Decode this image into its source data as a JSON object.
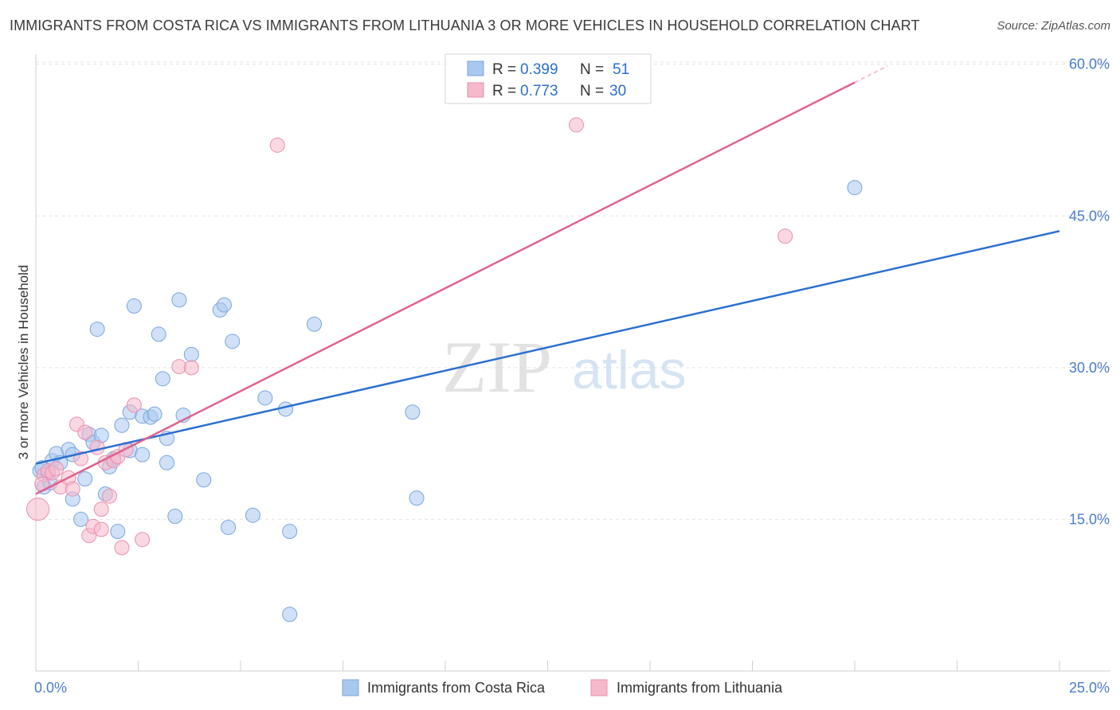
{
  "header": {
    "title": "IMMIGRANTS FROM COSTA RICA VS IMMIGRANTS FROM LITHUANIA 3 OR MORE VEHICLES IN HOUSEHOLD CORRELATION CHART",
    "source": "Source: ZipAtlas.com"
  },
  "watermark": {
    "zip": "ZIP",
    "atlas": "atlas"
  },
  "legend": {
    "r_label": "R =",
    "n_label": "N =",
    "series": [
      {
        "r": "0.399",
        "n": "51"
      },
      {
        "r": "0.773",
        "n": "30"
      }
    ]
  },
  "colors": {
    "costa_rica_fill": "#a9c8f0",
    "costa_rica_line": "#2b6fd0",
    "lithuania_fill": "#f6b8cb",
    "lithuania_line": "#e0628e",
    "tick_text": "#4a7cc9",
    "grid": "#e3e3e3"
  },
  "chart_data": {
    "type": "scatter",
    "xlabel": "",
    "ylabel": "3 or more Vehicles in Household",
    "xlim": [
      0,
      25
    ],
    "ylim": [
      0,
      61
    ],
    "x_ticks": [
      {
        "value": 0,
        "label": "0.0%"
      },
      {
        "value": 25,
        "label": "25.0%"
      }
    ],
    "y_ticks": [
      {
        "value": 15,
        "label": "15.0%"
      },
      {
        "value": 30,
        "label": "30.0%"
      },
      {
        "value": 45,
        "label": "45.0%"
      },
      {
        "value": 60,
        "label": "60.0%"
      }
    ],
    "grid": true,
    "legend_position": "top-center",
    "series": [
      {
        "name": "Immigrants from Costa Rica",
        "r": 0.399,
        "n": 51,
        "trend": {
          "x0": 0,
          "y0": 20.5,
          "x1": 25,
          "y1": 43.5
        },
        "points": [
          [
            0.1,
            19.8
          ],
          [
            0.2,
            18.2
          ],
          [
            0.3,
            19.6
          ],
          [
            0.4,
            20.8
          ],
          [
            0.5,
            21.5
          ],
          [
            0.6,
            20.6
          ],
          [
            0.8,
            21.9
          ],
          [
            0.9,
            21.4
          ],
          [
            0.9,
            17.0
          ],
          [
            1.1,
            15.0
          ],
          [
            1.2,
            19.0
          ],
          [
            1.3,
            23.4
          ],
          [
            1.4,
            22.6
          ],
          [
            1.5,
            33.8
          ],
          [
            1.6,
            23.3
          ],
          [
            1.7,
            17.5
          ],
          [
            1.8,
            20.2
          ],
          [
            1.9,
            21.0
          ],
          [
            2.0,
            13.8
          ],
          [
            2.1,
            24.3
          ],
          [
            2.3,
            21.8
          ],
          [
            2.3,
            25.6
          ],
          [
            2.4,
            36.1
          ],
          [
            2.6,
            21.4
          ],
          [
            2.6,
            25.2
          ],
          [
            2.8,
            25.1
          ],
          [
            2.9,
            25.4
          ],
          [
            3.0,
            33.3
          ],
          [
            3.1,
            28.9
          ],
          [
            3.2,
            23.0
          ],
          [
            3.2,
            20.6
          ],
          [
            3.4,
            15.3
          ],
          [
            3.5,
            36.7
          ],
          [
            3.6,
            25.3
          ],
          [
            3.8,
            31.3
          ],
          [
            4.1,
            18.9
          ],
          [
            4.5,
            35.7
          ],
          [
            4.6,
            36.2
          ],
          [
            4.7,
            14.2
          ],
          [
            4.8,
            32.6
          ],
          [
            5.3,
            15.4
          ],
          [
            5.6,
            27.0
          ],
          [
            6.1,
            25.9
          ],
          [
            6.2,
            13.8
          ],
          [
            6.2,
            5.6
          ],
          [
            6.8,
            34.3
          ],
          [
            9.2,
            25.6
          ],
          [
            9.3,
            17.1
          ],
          [
            20.0,
            47.8
          ],
          [
            0.15,
            20.1
          ],
          [
            0.35,
            18.6
          ]
        ]
      },
      {
        "name": "Immigrants from Lithuania",
        "r": 0.773,
        "n": 30,
        "trend": {
          "x0": 0,
          "y0": 17.5,
          "x1": 20,
          "y1": 58.2
        },
        "points": [
          [
            0.05,
            16.0
          ],
          [
            0.2,
            19.4
          ],
          [
            0.3,
            19.8
          ],
          [
            0.4,
            19.6
          ],
          [
            0.5,
            20.0
          ],
          [
            0.6,
            18.2
          ],
          [
            0.8,
            19.1
          ],
          [
            0.9,
            18.0
          ],
          [
            1.0,
            24.4
          ],
          [
            1.1,
            21.0
          ],
          [
            1.2,
            23.6
          ],
          [
            1.3,
            13.4
          ],
          [
            1.4,
            14.3
          ],
          [
            1.5,
            22.1
          ],
          [
            1.6,
            16.0
          ],
          [
            1.6,
            14.0
          ],
          [
            1.7,
            20.6
          ],
          [
            1.8,
            17.3
          ],
          [
            1.9,
            20.8
          ],
          [
            2.0,
            21.2
          ],
          [
            2.1,
            12.2
          ],
          [
            2.2,
            21.9
          ],
          [
            2.4,
            26.3
          ],
          [
            2.6,
            13.0
          ],
          [
            3.5,
            30.1
          ],
          [
            3.8,
            30.0
          ],
          [
            5.9,
            52.0
          ],
          [
            13.2,
            54.0
          ],
          [
            18.3,
            43.0
          ],
          [
            0.15,
            18.5
          ]
        ]
      }
    ]
  }
}
